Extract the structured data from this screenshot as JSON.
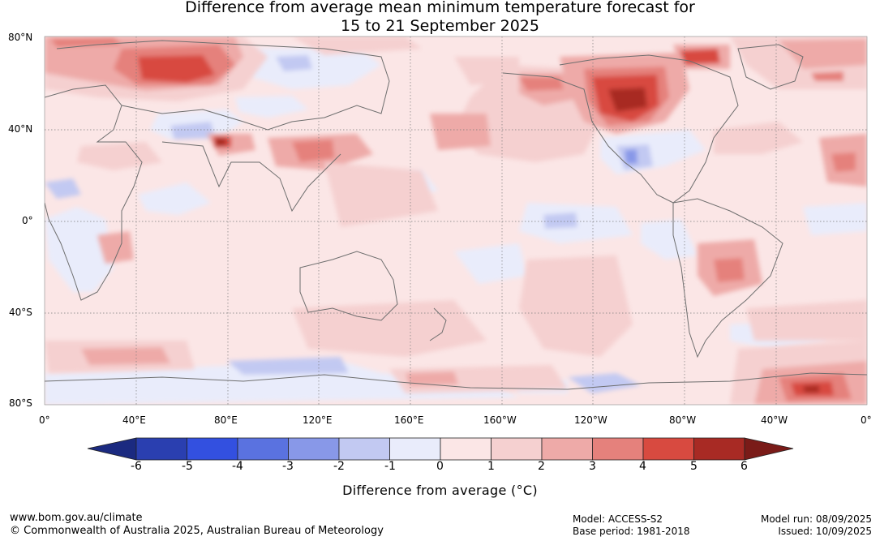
{
  "title": {
    "line1": "Difference from average mean minimum temperature forecast for",
    "line2": "15 to 21 September 2025"
  },
  "map": {
    "lat_labels": [
      "80°N",
      "40°N",
      "0°",
      "40°S",
      "80°S"
    ],
    "lon_labels": [
      "0°",
      "40°E",
      "80°E",
      "120°E",
      "160°E",
      "160°W",
      "120°W",
      "80°W",
      "40°W",
      "0°"
    ],
    "colors": {
      "cool_6": "#1b2a80",
      "cool_5": "#2a3fb0",
      "cool_4": "#3350e0",
      "cool_3": "#5a72e0",
      "cool_2": "#8898e8",
      "cool_1": "#c2c9f2",
      "cool_0": "#e9ecfb",
      "warm_0": "#fbe6e6",
      "warm_1": "#f5d0d0",
      "warm_2": "#eeaaa8",
      "warm_3": "#e5817c",
      "warm_4": "#d84a40",
      "warm_5": "#a82a24",
      "warm_6": "#7a1b18",
      "coast": "#6e6e6e"
    }
  },
  "colorbar": {
    "tick_labels": [
      "-6",
      "-5",
      "-4",
      "-3",
      "-2",
      "-1",
      "0",
      "1",
      "2",
      "3",
      "4",
      "5",
      "6"
    ],
    "label": "Difference from average (°C)"
  },
  "footer": {
    "website": "www.bom.gov.au/climate",
    "copyright": "© Commonwealth of Australia 2025, Australian Bureau of Meteorology",
    "model": "Model: ACCESS-S2",
    "base_period": "Base period: 1981-2018",
    "model_run": "Model run: 08/09/2025",
    "issued": "Issued: 10/09/2025"
  }
}
